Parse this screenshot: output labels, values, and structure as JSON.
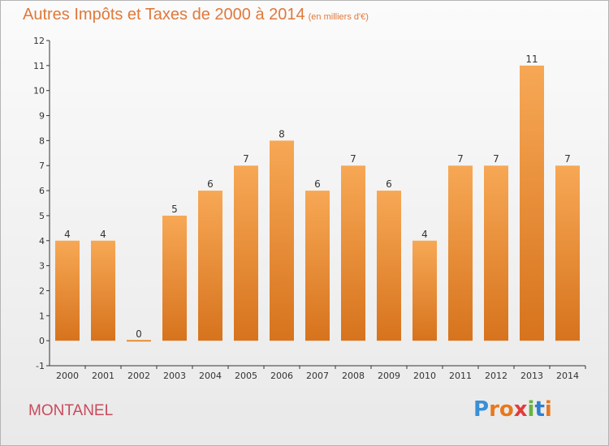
{
  "header": {
    "title": "Autres Impôts et Taxes de 2000 à 2014",
    "unit": "(en milliers d'€)"
  },
  "footer": {
    "commune": "MONTANEL",
    "logo_letters": [
      "P",
      "r",
      "o",
      "x",
      "i",
      "t",
      "i"
    ],
    "logo_colors": [
      "#3a8fd6",
      "#e8781e",
      "#e8781e",
      "#e23b3b",
      "#69b33f",
      "#2f7fd0",
      "#e8781e"
    ]
  },
  "colors": {
    "bar_light": "#f7a855",
    "bar_dark": "#d7731d",
    "axis": "#333333",
    "grid": "#cccccc",
    "text": "#333333"
  },
  "chart_data": {
    "type": "bar",
    "categories": [
      "2000",
      "2001",
      "2002",
      "2003",
      "2004",
      "2005",
      "2006",
      "2007",
      "2008",
      "2009",
      "2010",
      "2011",
      "2012",
      "2013",
      "2014"
    ],
    "values": [
      4,
      4,
      0,
      5,
      6,
      7,
      8,
      6,
      7,
      6,
      4,
      7,
      7,
      11,
      7
    ],
    "data_labels": [
      "4",
      "4",
      "0",
      "5",
      "6",
      "7",
      "8",
      "6",
      "7",
      "6",
      "4",
      "7",
      "7",
      "11",
      "7"
    ],
    "y_ticks": [
      "-1",
      "0",
      "1",
      "2",
      "3",
      "4",
      "5",
      "6",
      "7",
      "8",
      "9",
      "10",
      "11",
      "12"
    ],
    "ylim": [
      -1,
      12
    ],
    "grid": false
  }
}
